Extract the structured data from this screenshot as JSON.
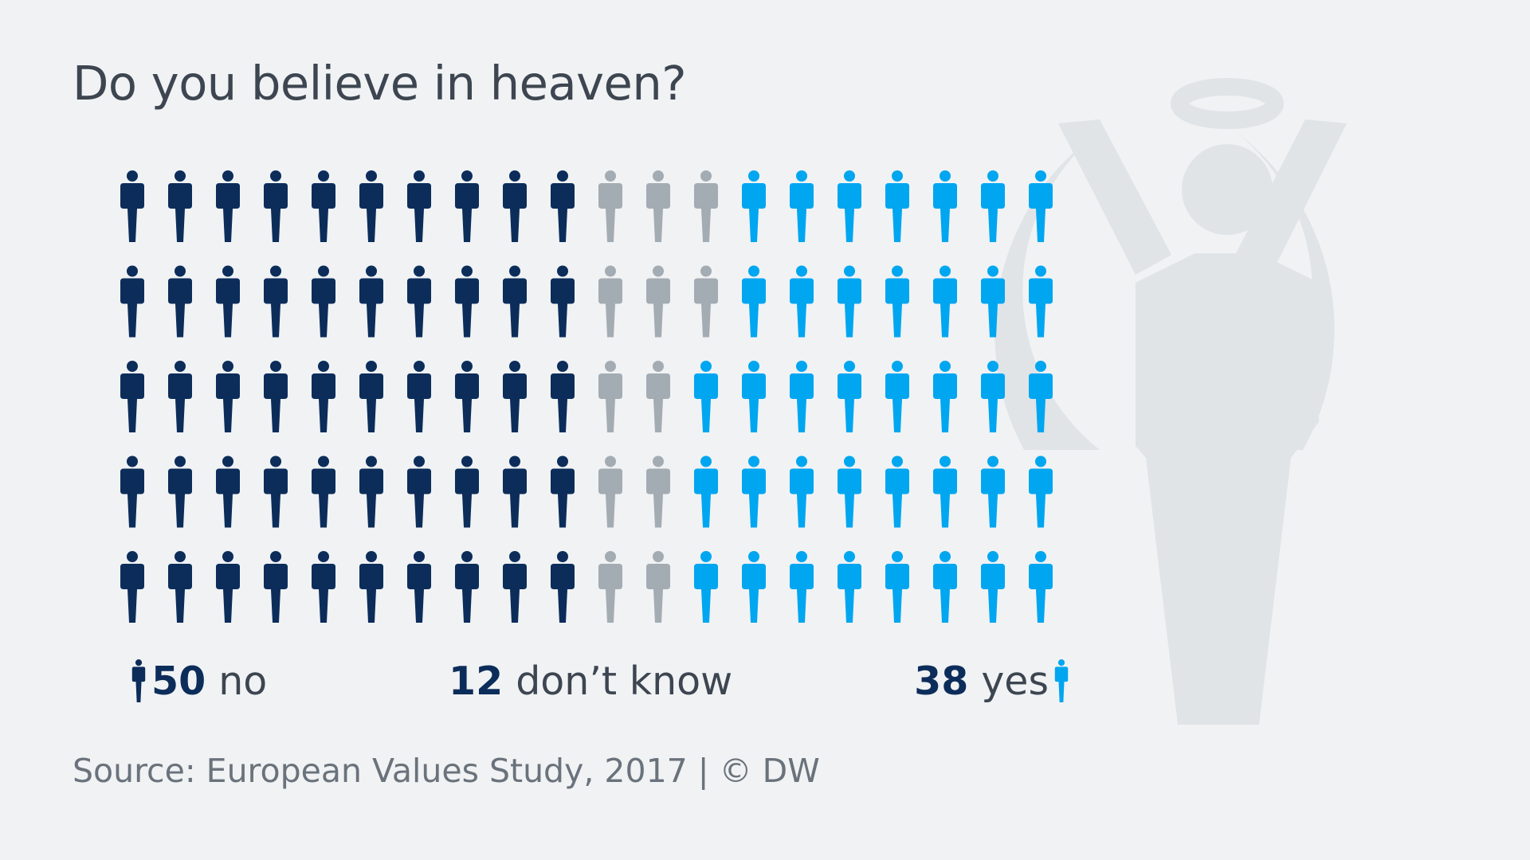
{
  "colors": {
    "background": "#f0f2f4",
    "no": "#0c2d5a",
    "dont_know": "#a4acb3",
    "yes": "#00a6f0",
    "angel": "#e0e4e7",
    "title": "#3d4650",
    "source": "#6a727b"
  },
  "title": "Do you believe in heaven?",
  "chart_data": {
    "type": "pictogram",
    "title": "Do you believe in heaven?",
    "unit": "people out of 100",
    "total": 100,
    "grid": {
      "rows": 5,
      "columns": 20
    },
    "fill_order": "column-wise, left to right",
    "categories": [
      "no",
      "don’t know",
      "yes"
    ],
    "values": [
      50,
      12,
      38
    ],
    "series": [
      {
        "name": "no",
        "value": 50,
        "color": "#0c2d5a"
      },
      {
        "name": "don’t know",
        "value": 12,
        "color": "#a4acb3"
      },
      {
        "name": "yes",
        "value": 38,
        "color": "#00a6f0"
      }
    ],
    "icon": "person-icon"
  },
  "legend": {
    "no": {
      "number": "50",
      "label": "no"
    },
    "dont_know": {
      "number": "12",
      "label": "don’t know"
    },
    "yes": {
      "number": "38",
      "label": "yes"
    }
  },
  "background_icon": "angel-icon",
  "source": "Source: European Values Study, 2017 | © DW"
}
